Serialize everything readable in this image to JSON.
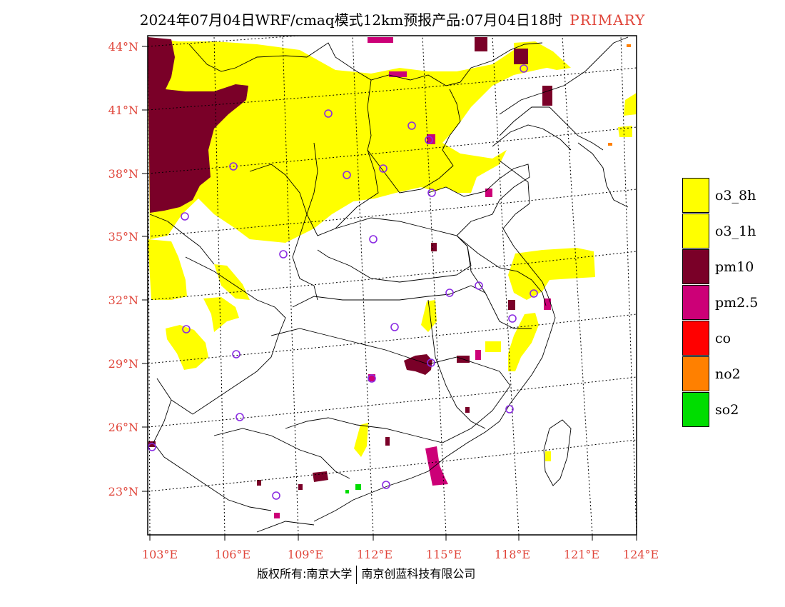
{
  "title": {
    "main": "2024年07月04日WRF/cmaq模式12km预报产品:07月04日18时",
    "tag": "PRIMARY"
  },
  "axes": {
    "lat_labels": [
      "44°N",
      "41°N",
      "38°N",
      "35°N",
      "32°N",
      "29°N",
      "26°N",
      "23°N"
    ],
    "lon_labels": [
      "103°E",
      "106°E",
      "109°E",
      "112°E",
      "115°E",
      "118°E",
      "121°E",
      "124°E"
    ],
    "label_color": "#e0453a"
  },
  "legend": [
    {
      "label": "o3_8h",
      "color": "#ffff00"
    },
    {
      "label": "o3_1h",
      "color": "#ffff00"
    },
    {
      "label": "pm10",
      "color": "#7a0028"
    },
    {
      "label": "pm2.5",
      "color": "#cc0077"
    },
    {
      "label": "co",
      "color": "#ff0000"
    },
    {
      "label": "no2",
      "color": "#ff8000"
    },
    {
      "label": "so2",
      "color": "#00dd00"
    }
  ],
  "credit": {
    "left": "版权所有:南京大学",
    "right": "南京创蓝科技有限公司"
  },
  "station_marker_color": "#8a2be2"
}
